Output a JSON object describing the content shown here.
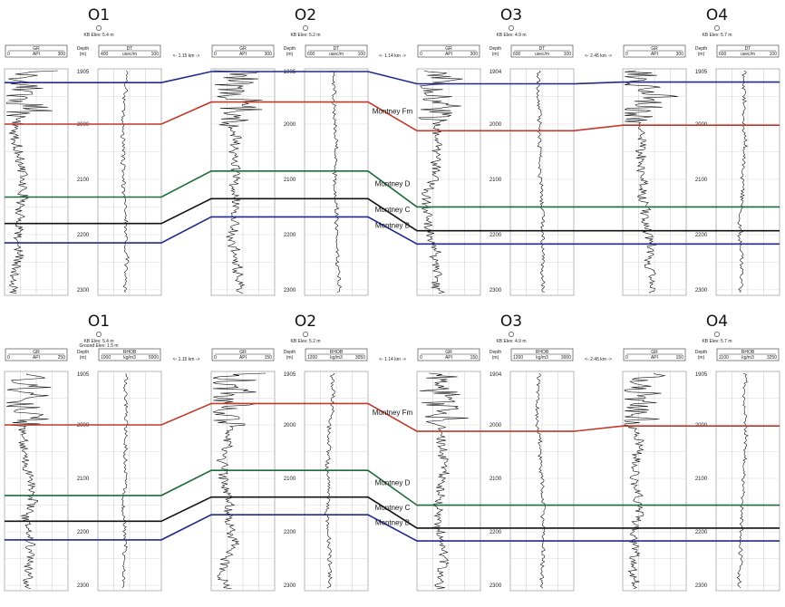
{
  "figure": {
    "wells": [
      {
        "name": "O1",
        "kb": "KB Elev: 5.4 m",
        "ground": "Ground Elev: 1.5 m"
      },
      {
        "name": "O2",
        "kb": "KB Elev: 5.2 m",
        "ground": ""
      },
      {
        "name": "O3",
        "kb": "KB Elev: 4.9 m",
        "ground": ""
      },
      {
        "name": "O4",
        "kb": "KB Elev: 5.7 m",
        "ground": ""
      }
    ],
    "depth_header": [
      "Depth",
      "(m)"
    ],
    "distances": [
      "<- 1.15 km ->",
      "<- 1.14 km ->",
      "<- 2.45 km ->"
    ],
    "panels": [
      {
        "id": "top",
        "track1": {
          "name": "GR",
          "unit": "API"
        },
        "track2": {
          "name": "DT",
          "unit": "usec/m"
        },
        "scales": [
          {
            "t1": [
              "0",
              "300"
            ],
            "t2": [
              "400",
              "100"
            ]
          },
          {
            "t1": [
              "0",
              "300"
            ],
            "t2": [
              "600",
              "100"
            ]
          },
          {
            "t1": [
              "0",
              "300"
            ],
            "t2": [
              "600",
              "100"
            ]
          },
          {
            "t1": [
              "0",
              "300"
            ],
            "t2": [
              "600",
              "100"
            ]
          }
        ],
        "depth_labels": [
          [
            "1905",
            "2000",
            "2100",
            "2200",
            "2300"
          ],
          [
            "1905",
            "2000",
            "2100",
            "2200",
            "2300"
          ],
          [
            "1904",
            "2000",
            "2100",
            "2200",
            "2300"
          ],
          [
            "1905",
            "2000",
            "2100",
            "2200",
            "2300"
          ]
        ],
        "horizons": [
          {
            "name": "",
            "color": "#1f2a8c",
            "depths": [
              1925,
              1905,
              1927,
              1924
            ]
          },
          {
            "name": "Montney Fm",
            "color": "#c0392b",
            "depths": [
              2000,
              1960,
              2012,
              2002
            ]
          },
          {
            "name": "Montney D",
            "color": "#1e6b3a",
            "depths": [
              2132,
              2085,
              2150,
              2150
            ]
          },
          {
            "name": "Montney C",
            "color": "#111111",
            "depths": [
              2180,
              2135,
              2193,
              2193
            ]
          },
          {
            "name": "Montney B",
            "color": "#1f2a8c",
            "depths": [
              2215,
              2168,
              2217,
              2217
            ]
          }
        ]
      },
      {
        "id": "bottom",
        "track1": {
          "name": "GR",
          "unit": "API"
        },
        "track2": {
          "name": "RHOB",
          "unit": "kg/m3"
        },
        "scales": [
          {
            "t1": [
              "0",
              "250"
            ],
            "t2": [
              "1000",
              "5000"
            ]
          },
          {
            "t1": [
              "0",
              "150"
            ],
            "t2": [
              "1200",
              "3050"
            ]
          },
          {
            "t1": [
              "0",
              "150"
            ],
            "t2": [
              "1200",
              "3000"
            ]
          },
          {
            "t1": [
              "0",
              "150"
            ],
            "t2": [
              "1100",
              "3250"
            ]
          }
        ],
        "depth_labels": [
          [
            "1905",
            "2000",
            "2100",
            "2200",
            "2300"
          ],
          [
            "1905",
            "2000",
            "2100",
            "2200",
            "2300"
          ],
          [
            "1904",
            "2000",
            "2100",
            "2200",
            "2300"
          ],
          [
            "1905",
            "2000",
            "2100",
            "2200",
            "2300"
          ]
        ],
        "horizons": [
          {
            "name": "Montney Fm",
            "color": "#c0392b",
            "depths": [
              2000,
              1960,
              2012,
              2002
            ]
          },
          {
            "name": "Montney D",
            "color": "#1e6b3a",
            "depths": [
              2132,
              2085,
              2150,
              2150
            ]
          },
          {
            "name": "Montney C",
            "color": "#111111",
            "depths": [
              2180,
              2135,
              2193,
              2193
            ]
          },
          {
            "name": "Montney B",
            "color": "#1f2a8c",
            "depths": [
              2215,
              2168,
              2217,
              2217
            ]
          }
        ]
      }
    ]
  }
}
